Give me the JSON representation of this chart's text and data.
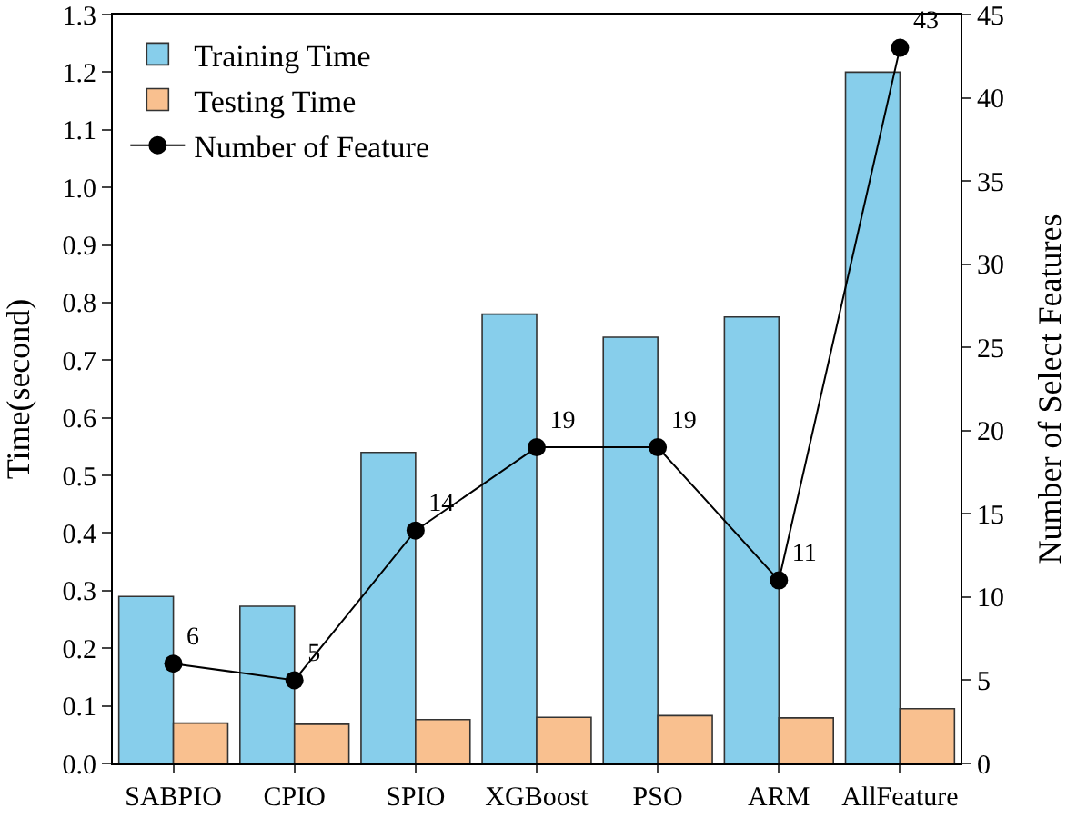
{
  "chart_data": {
    "type": "bar",
    "ylabel": "Time(second)",
    "y2label": "Number of Select Features",
    "categories": [
      "SABPIO",
      "CPIO",
      "SPIO",
      "XGBoost",
      "PSO",
      "ARM",
      "AllFeature"
    ],
    "series": [
      {
        "name": "Training Time",
        "color": "#87ceeb",
        "values": [
          0.29,
          0.273,
          0.54,
          0.78,
          0.74,
          0.775,
          1.2
        ]
      },
      {
        "name": "Testing Time",
        "color": "#f9c08f",
        "values": [
          0.07,
          0.068,
          0.076,
          0.08,
          0.083,
          0.079,
          0.095
        ]
      },
      {
        "name": "Number of Feature",
        "type": "line",
        "axis": "y2",
        "color": "#000000",
        "marker": "circle",
        "values": [
          6,
          5,
          14,
          19,
          19,
          11,
          43
        ],
        "value_labels": [
          "6",
          "5",
          "14",
          "19",
          "19",
          "11",
          "43"
        ]
      }
    ],
    "ylim": [
      0,
      1.3
    ],
    "yticks": [
      {
        "value": 0,
        "label": "0.0"
      },
      0.1,
      0.2,
      0.3,
      0.4,
      0.5,
      0.6,
      0.7,
      0.8,
      0.9,
      {
        "value": 1,
        "label": "1.0"
      },
      1.1,
      1.2,
      1.3
    ],
    "y2lim": [
      0,
      45
    ],
    "y2ticks": [
      0,
      5,
      10,
      15,
      20,
      25,
      30,
      35,
      40,
      45
    ],
    "legend": "top left",
    "grid": false
  }
}
